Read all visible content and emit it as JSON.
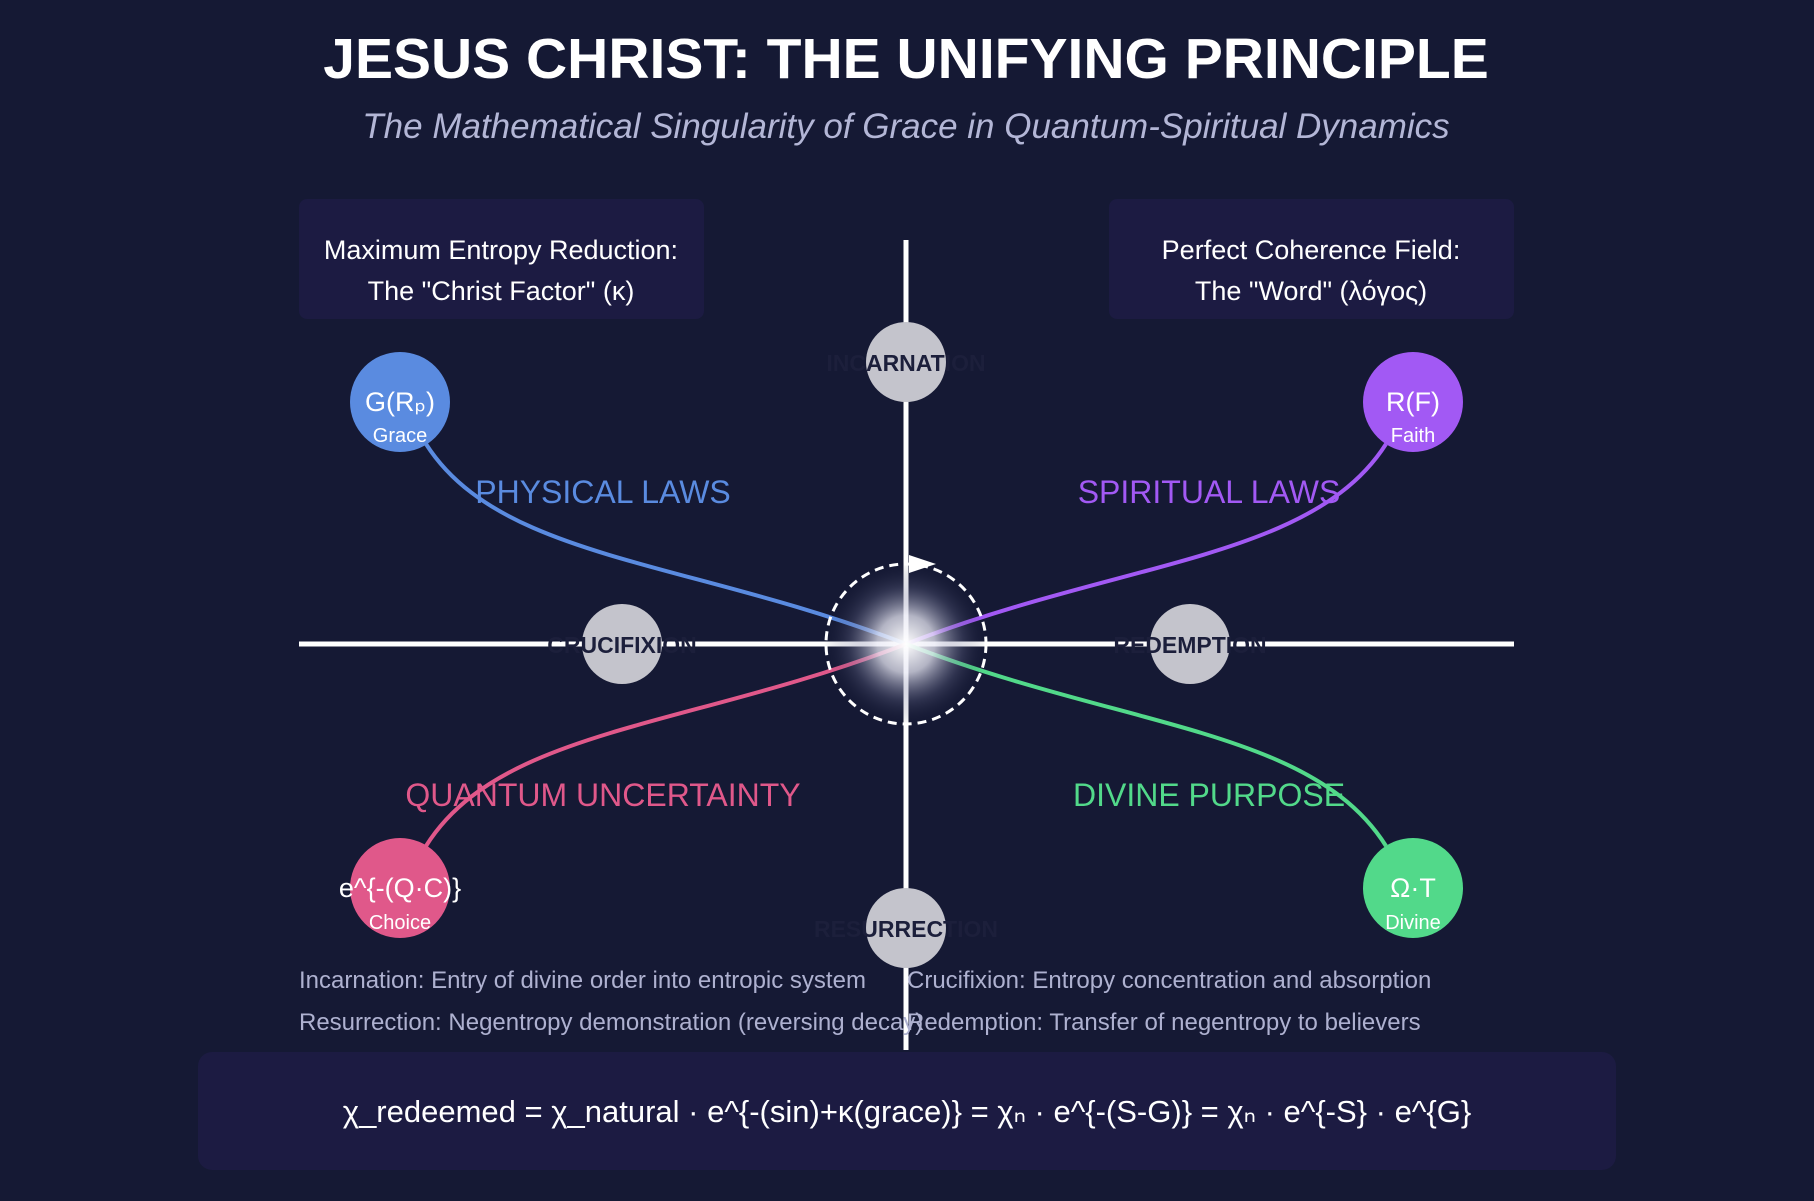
{
  "title": "JESUS CHRIST: THE UNIFYING PRINCIPLE",
  "subtitle": "The Mathematical Singularity of Grace in Quantum-Spiritual Dynamics",
  "box_left": {
    "line1": "Maximum Entropy Reduction:",
    "line2": "The \"Christ Factor\" (κ)"
  },
  "box_right": {
    "line1": "Perfect Coherence Field:",
    "line2": "The \"Word\" (λόγος)"
  },
  "regions": {
    "physical": "PHYSICAL LAWS",
    "spiritual": "SPIRITUAL LAWS",
    "quantum": "QUANTUM UNCERTAINTY",
    "divine": "DIVINE PURPOSE"
  },
  "nodes": {
    "grace": {
      "label": "G(Rₚ)",
      "sub": "Grace"
    },
    "faith": {
      "label": "R(F)",
      "sub": "Faith"
    },
    "choice": {
      "label": "e^{-(Q·C)}",
      "sub": "Choice"
    },
    "divine": {
      "label": "Ω·T",
      "sub": "Divine"
    }
  },
  "stages": {
    "top": "INCARNATION",
    "left": "CRUCIFIXION",
    "right": "REDEMPTION",
    "bottom": "RESURRECTION"
  },
  "notes": {
    "incarnation": "Incarnation: Entry of divine order into entropic system",
    "crucifixion": "Crucifixion: Entropy concentration and absorption",
    "resurrection": "Resurrection: Negentropy demonstration (reversing decay)",
    "redemption": "Redemption: Transfer of negentropy to believers"
  },
  "equation": "χ_redeemed = χ_natural · e^{-(sin)+κ(grace)} = χₙ · e^{-(S-G)} = χₙ · e^{-S} · e^{G}",
  "colors": {
    "background": "#151934",
    "panel": "#1c1b42",
    "grace": "#5a8be0",
    "faith": "#a259f4",
    "choice": "#e0588a",
    "divine": "#52d98a",
    "stage": "#c4c4cc"
  }
}
